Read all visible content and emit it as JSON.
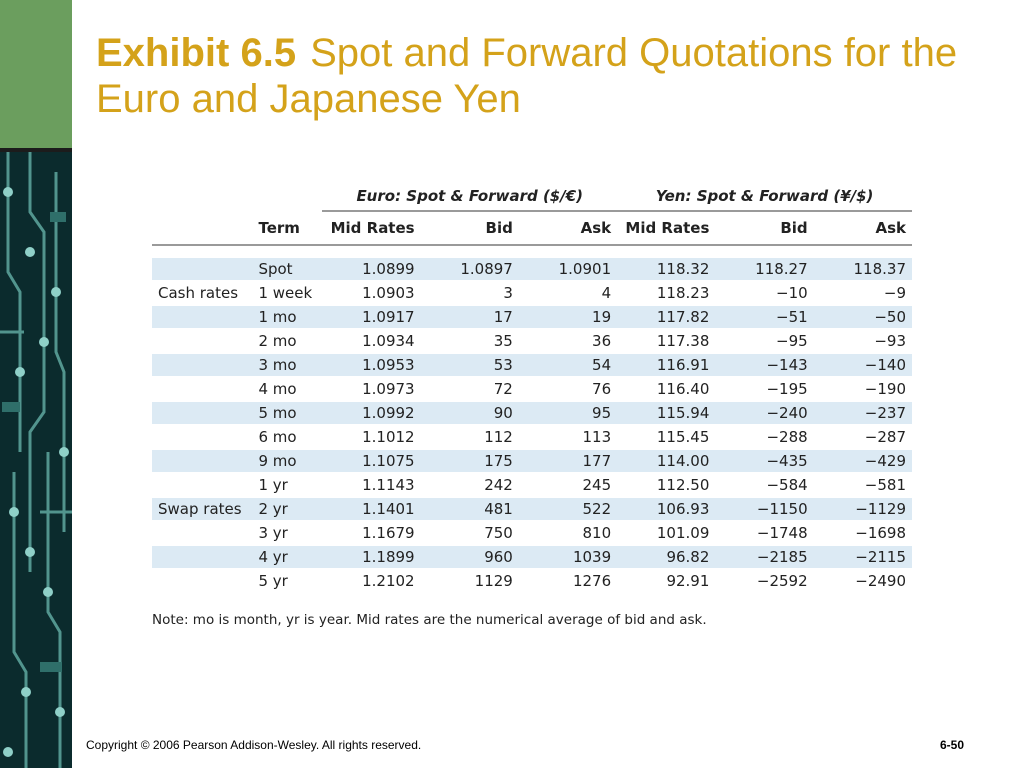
{
  "title": {
    "lead": "Exhibit 6.5",
    "rest": "Spot and Forward Quotations for the Euro and Japanese Yen"
  },
  "table": {
    "group_headers": [
      "Euro: Spot & Forward ($/€)",
      "Yen: Spot & Forward (¥/$)"
    ],
    "columns": [
      "Term",
      "Mid Rates",
      "Bid",
      "Ask",
      "Mid Rates",
      "Bid",
      "Ask"
    ],
    "rows": [
      {
        "label": "",
        "term": "Spot",
        "e_mid": "1.0899",
        "e_bid": "1.0897",
        "e_ask": "1.0901",
        "y_mid": "118.32",
        "y_bid": "118.27",
        "y_ask": "118.37"
      },
      {
        "label": "Cash rates",
        "term": "1 week",
        "e_mid": "1.0903",
        "e_bid": "3",
        "e_ask": "4",
        "y_mid": "118.23",
        "y_bid": "−10",
        "y_ask": "−9"
      },
      {
        "label": "",
        "term": "1 mo",
        "e_mid": "1.0917",
        "e_bid": "17",
        "e_ask": "19",
        "y_mid": "117.82",
        "y_bid": "−51",
        "y_ask": "−50"
      },
      {
        "label": "",
        "term": "2 mo",
        "e_mid": "1.0934",
        "e_bid": "35",
        "e_ask": "36",
        "y_mid": "117.38",
        "y_bid": "−95",
        "y_ask": "−93"
      },
      {
        "label": "",
        "term": "3 mo",
        "e_mid": "1.0953",
        "e_bid": "53",
        "e_ask": "54",
        "y_mid": "116.91",
        "y_bid": "−143",
        "y_ask": "−140"
      },
      {
        "label": "",
        "term": "4 mo",
        "e_mid": "1.0973",
        "e_bid": "72",
        "e_ask": "76",
        "y_mid": "116.40",
        "y_bid": "−195",
        "y_ask": "−190"
      },
      {
        "label": "",
        "term": "5 mo",
        "e_mid": "1.0992",
        "e_bid": "90",
        "e_ask": "95",
        "y_mid": "115.94",
        "y_bid": "−240",
        "y_ask": "−237"
      },
      {
        "label": "",
        "term": "6 mo",
        "e_mid": "1.1012",
        "e_bid": "112",
        "e_ask": "113",
        "y_mid": "115.45",
        "y_bid": "−288",
        "y_ask": "−287"
      },
      {
        "label": "",
        "term": "9 mo",
        "e_mid": "1.1075",
        "e_bid": "175",
        "e_ask": "177",
        "y_mid": "114.00",
        "y_bid": "−435",
        "y_ask": "−429"
      },
      {
        "label": "",
        "term": "1 yr",
        "e_mid": "1.1143",
        "e_bid": "242",
        "e_ask": "245",
        "y_mid": "112.50",
        "y_bid": "−584",
        "y_ask": "−581"
      },
      {
        "label": "Swap rates",
        "term": "2 yr",
        "e_mid": "1.1401",
        "e_bid": "481",
        "e_ask": "522",
        "y_mid": "106.93",
        "y_bid": "−1150",
        "y_ask": "−1129"
      },
      {
        "label": "",
        "term": "3 yr",
        "e_mid": "1.1679",
        "e_bid": "750",
        "e_ask": "810",
        "y_mid": "101.09",
        "y_bid": "−1748",
        "y_ask": "−1698"
      },
      {
        "label": "",
        "term": "4 yr",
        "e_mid": "1.1899",
        "e_bid": "960",
        "e_ask": "1039",
        "y_mid": "96.82",
        "y_bid": "−2185",
        "y_ask": "−2115"
      },
      {
        "label": "",
        "term": "5 yr",
        "e_mid": "1.2102",
        "e_bid": "1129",
        "e_ask": "1276",
        "y_mid": "92.91",
        "y_bid": "−2592",
        "y_ask": "−2490"
      }
    ]
  },
  "note": "Note: mo is month, yr is year. Mid rates are the numerical average of bid and ask.",
  "footer": {
    "copyright": "Copyright © 2006 Pearson Addison-Wesley. All rights reserved.",
    "slide_number": "6-50"
  },
  "colors": {
    "title": "#d4a21a",
    "row_shade": "#dceaf4",
    "side_green": "#6b9e5e",
    "side_dark": "#0b2b2d"
  }
}
